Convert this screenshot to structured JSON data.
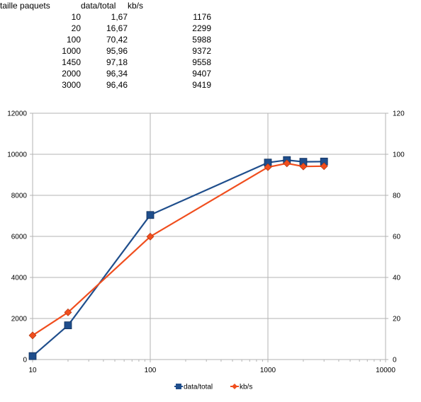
{
  "table": {
    "headers": [
      "taille paquets",
      "data/total",
      "kb/s"
    ],
    "rows": [
      [
        "10",
        "1,67",
        "1176"
      ],
      [
        "20",
        "16,67",
        "2299"
      ],
      [
        "100",
        "70,42",
        "5988"
      ],
      [
        "1000",
        "95,96",
        "9372"
      ],
      [
        "1450",
        "97,18",
        "9558"
      ],
      [
        "2000",
        "96,34",
        "9407"
      ],
      [
        "3000",
        "96,46",
        "9419"
      ]
    ]
  },
  "chart_data": {
    "type": "line",
    "x_scale": "log",
    "x": [
      10,
      20,
      100,
      1000,
      1450,
      2000,
      3000
    ],
    "xlim": [
      10,
      10000
    ],
    "x_ticks": [
      "10",
      "100",
      "1000",
      "10000"
    ],
    "ylim_left": [
      0,
      12000
    ],
    "y_ticks_left": [
      "0",
      "2000",
      "4000",
      "6000",
      "8000",
      "10000",
      "12000"
    ],
    "ylim_right": [
      0,
      120
    ],
    "y_ticks_right": [
      "0",
      "20",
      "40",
      "60",
      "80",
      "100",
      "120"
    ],
    "grid": "horizontal",
    "legend": "bottom",
    "series": [
      {
        "name": "data/total",
        "axis": "right",
        "color": "#1f4e8c",
        "marker": "square",
        "values": [
          1.67,
          16.67,
          70.42,
          95.96,
          97.18,
          96.34,
          96.46
        ]
      },
      {
        "name": "kb/s",
        "axis": "left",
        "color": "#f04e1e",
        "marker": "diamond",
        "values": [
          1176,
          2299,
          5988,
          9372,
          9558,
          9407,
          9419
        ]
      }
    ]
  }
}
